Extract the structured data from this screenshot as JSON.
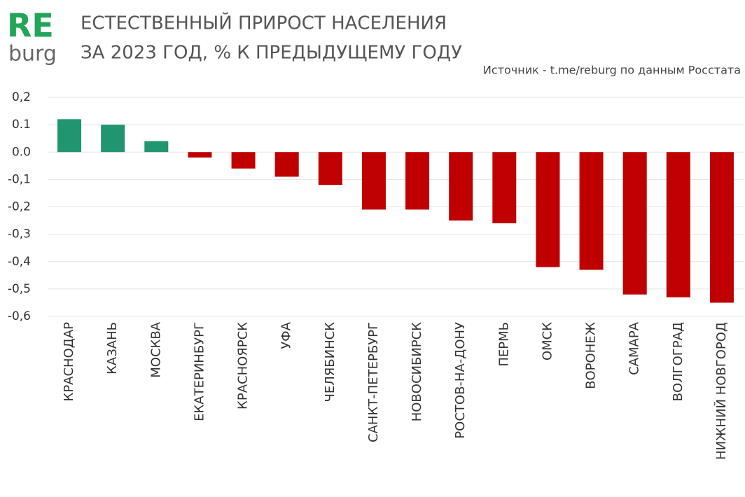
{
  "chart_data": {
    "type": "bar",
    "logo": {
      "top": "RE",
      "bottom": "burg"
    },
    "title": [
      "ЕСТЕСТВЕННЫЙ ПРИРОСТ НАСЕЛЕНИЯ",
      "ЗА 2023 ГОД, % К ПРЕДЫДУЩЕМУ ГОДУ"
    ],
    "source": "Источник - t.me/reburg по данным Росстата",
    "categories": [
      "КРАСНОДАР",
      "КАЗАНЬ",
      "МОСКВА",
      "ЕКАТЕРИНБУРГ",
      "КРАСНОЯРСК",
      "УФА",
      "ЧЕЛЯБИНСК",
      "САНКТ-ПЕТЕРБУРГ",
      "НОВОСИБИРСК",
      "РОСТОВ-НА-ДОНУ",
      "ПЕРМЬ",
      "ОМСК",
      "ВОРОНЕЖ",
      "САМАРА",
      "ВОЛГОГРАД",
      "НИЖНИЙ НОВГОРОД"
    ],
    "values": [
      0.12,
      0.1,
      0.04,
      -0.02,
      -0.06,
      -0.09,
      -0.12,
      -0.21,
      -0.21,
      -0.25,
      -0.26,
      -0.42,
      -0.43,
      -0.52,
      -0.53,
      -0.55
    ],
    "positive_color": "#21956f",
    "negative_color": "#c00000",
    "ylim": [
      -0.6,
      0.2
    ],
    "yticks": [
      {
        "value": 0.2,
        "label": "0,2"
      },
      0.1,
      {
        "value": 0,
        "label": "0.0"
      },
      {
        "value": -0.1,
        "label": "-0,1"
      },
      {
        "value": -0.2,
        "label": "-0,2"
      },
      {
        "value": -0.3,
        "label": "-0,3"
      },
      {
        "value": -0.4,
        "label": "-0,4"
      },
      {
        "value": -0.5,
        "label": "-0,5"
      },
      {
        "value": -0.6,
        "label": "-0,6"
      }
    ],
    "grid": true
  }
}
